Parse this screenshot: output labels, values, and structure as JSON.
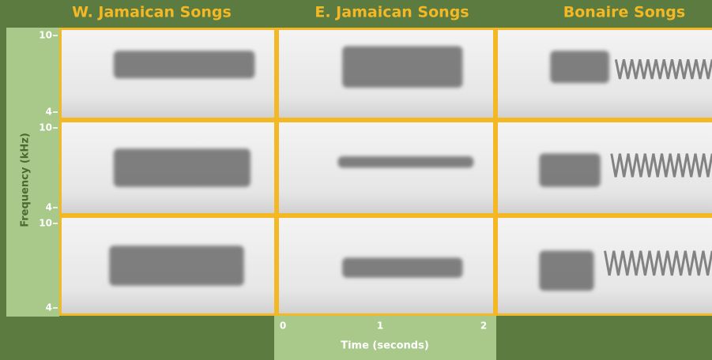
{
  "columns": [
    "W. Jamaican Songs",
    "E. Jamaican Songs",
    "Bonaire Songs"
  ],
  "y_axis": {
    "label": "Frequency (kHz)",
    "ticks": [
      10,
      4
    ]
  },
  "x_axis": {
    "label": "Time (seconds)",
    "ticks": [
      0,
      1,
      2
    ]
  }
}
